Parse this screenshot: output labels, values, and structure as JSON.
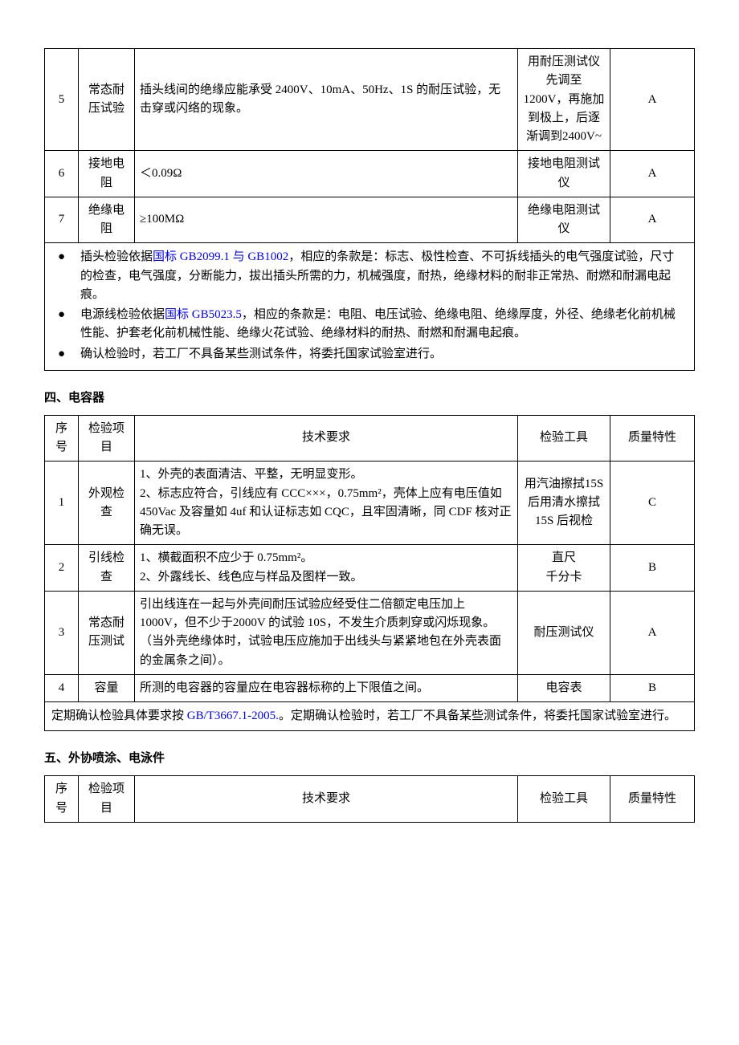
{
  "table1": {
    "rows": [
      {
        "seq": "5",
        "item": "常态耐压试验",
        "req": "插头线间的绝缘应能承受 2400V、10mA、50Hz、1S 的耐压试验，无击穿或闪络的现象。",
        "tool": "用耐压测试仪先调至 1200V，再施加到极上，后逐渐调到2400V~",
        "qual": "A"
      },
      {
        "seq": "6",
        "item": "接地电阻",
        "req": "＜0.09Ω",
        "tool": "接地电阻测试仪",
        "qual": "A"
      },
      {
        "seq": "7",
        "item": "绝缘电阻",
        "req": "≥100MΩ",
        "tool": "绝缘电阻测试仪",
        "qual": "A"
      }
    ],
    "bullets": [
      {
        "pre": "插头检验依据",
        "link": "国标 GB2099.1 与 GB1002",
        "post": "，相应的条款是：标志、极性检查、不可拆线插头的电气强度试验，尺寸的检查，电气强度，分断能力，拔出插头所需的力，机械强度，耐热，绝缘材料的耐非正常热、耐燃和耐漏电起痕。"
      },
      {
        "pre": "电源线检验依据",
        "link": "国标 GB5023.5",
        "post": "，相应的条款是：电阻、电压试验、绝缘电阻、绝缘厚度，外径、绝缘老化前机械性能、护套老化前机械性能、绝缘火花试验、绝缘材料的耐热、耐燃和耐漏电起痕。"
      },
      {
        "pre": "确认检验时，若工厂不具备某些测试条件，将委托国家试验室进行。",
        "link": "",
        "post": ""
      }
    ]
  },
  "section2_title": "四、电容器",
  "headers": {
    "seq": "序号",
    "item": "检验项目",
    "req": "技术要求",
    "tool": "检验工具",
    "qual": "质量特性"
  },
  "table2": {
    "rows": [
      {
        "seq": "1",
        "item": "外观检查",
        "req": "1、外壳的表面清洁、平整，无明显变形。\n2、标志应符合，引线应有 CCC×××，0.75mm²，壳体上应有电压值如 450Vac 及容量如 4uf 和认证标志如 CQC，且牢固清晰，同 CDF 核对正确无误。",
        "tool": "用汽油擦拭15S 后用清水擦拭 15S 后视检",
        "qual": "C"
      },
      {
        "seq": "2",
        "item": "引线检查",
        "req": "1、横截面积不应少于 0.75mm²。\n2、外露线长、线色应与样品及图样一致。",
        "tool": "直尺\n千分卡",
        "qual": "B"
      },
      {
        "seq": "3",
        "item": "常态耐压测试",
        "req": "引出线连在一起与外壳间耐压试验应经受住二倍额定电压加上 1000V，但不少于2000V 的试验 10S，不发生介质刺穿或闪烁现象。（当外壳绝缘体时，试验电压应施加于出线头与紧紧地包在外壳表面的金属条之间）。",
        "tool": "耐压测试仪",
        "qual": "A"
      },
      {
        "seq": "4",
        "item": "容量",
        "req": "所测的电容器的容量应在电容器标称的上下限值之间。",
        "tool": "电容表",
        "qual": "B"
      }
    ],
    "note_pre": "定期确认检验具体要求按 ",
    "note_link": "GB/T3667.1-2005.",
    "note_post": "。定期确认检验时，若工厂不具备某些测试条件，将委托国家试验室进行。"
  },
  "section3_title": "五、外协喷涂、电泳件",
  "table3": {}
}
